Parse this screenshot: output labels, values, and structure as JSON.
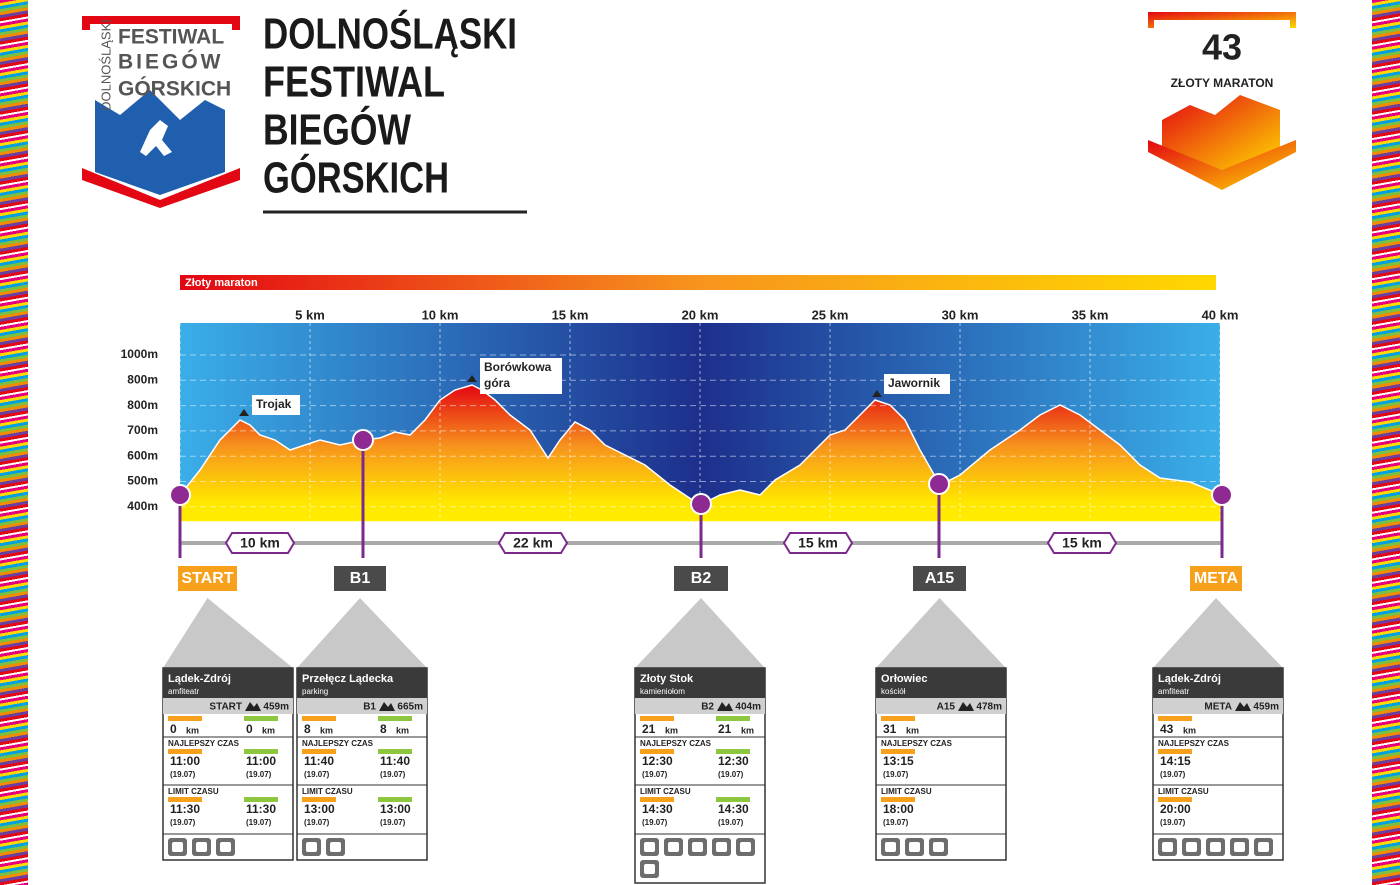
{
  "logo": {
    "vertical": "DOLNOŚLĄSKI",
    "lines": [
      "FESTIWAL",
      "BIEGÓW",
      "GÓRSKICH"
    ]
  },
  "header": {
    "title_lines": [
      "DOLNOŚLĄSKI",
      "FESTIWAL",
      "BIEGÓW",
      "GÓRSKICH"
    ]
  },
  "badge": {
    "number": "43",
    "name": "ZŁOTY MARATON"
  },
  "profile": {
    "route_name": "Złoty maraton",
    "km_labels": [
      "5 km",
      "10 km",
      "15 km",
      "20 km",
      "25 km",
      "30 km",
      "35 km",
      "40 km"
    ],
    "altitude_labels": [
      "1000m",
      "800m",
      "800m",
      "700m",
      "600m",
      "500m",
      "400m"
    ],
    "peaks": [
      {
        "lines": [
          "Trojak"
        ]
      },
      {
        "lines": [
          "Borówkowa",
          "góra"
        ]
      },
      {
        "lines": [
          "Jawornik"
        ]
      }
    ],
    "segments": [
      "10 km",
      "22 km",
      "15 km",
      "15 km"
    ]
  },
  "labels": {
    "best": "NAJLEPSZY CZAS",
    "limit": "LIMIT CZASU",
    "km": "km"
  },
  "cards": [
    {
      "name": "Lądek-Zdrój",
      "sub": "amfiteatr",
      "code": "START",
      "altitude": "459m",
      "distance": [
        0,
        0
      ],
      "best": [
        {
          "time": "11:00",
          "date": "(19.07)"
        },
        {
          "time": "11:00",
          "date": "(19.07)"
        }
      ],
      "limit": [
        {
          "time": "11:30",
          "date": "(19.07)"
        },
        {
          "time": "11:30",
          "date": "(19.07)"
        }
      ]
    },
    {
      "name": "Przełęcz Lądecka",
      "sub": "parking",
      "code": "B1",
      "altitude": "665m",
      "distance": [
        8,
        8
      ],
      "best": [
        {
          "time": "11:40",
          "date": "(19.07)"
        },
        {
          "time": "11:40",
          "date": "(19.07)"
        }
      ],
      "limit": [
        {
          "time": "13:00",
          "date": "(19.07)"
        },
        {
          "time": "13:00",
          "date": "(19.07)"
        }
      ]
    },
    {
      "name": "Złoty Stok",
      "sub": "kamieniołom",
      "code": "B2",
      "altitude": "404m",
      "distance": [
        21,
        21
      ],
      "best": [
        {
          "time": "12:30",
          "date": "(19.07)"
        },
        {
          "time": "12:30",
          "date": "(19.07)"
        }
      ],
      "limit": [
        {
          "time": "14:30",
          "date": "(19.07)"
        },
        {
          "time": "14:30",
          "date": "(19.07)"
        }
      ]
    },
    {
      "name": "Orłowiec",
      "sub": "kościół",
      "code": "A15",
      "altitude": "478m",
      "distance": [
        31
      ],
      "best": [
        {
          "time": "13:15",
          "date": "(19.07)"
        }
      ],
      "limit": [
        {
          "time": "18:00",
          "date": "(19.07)"
        }
      ]
    },
    {
      "name": "Lądek-Zdrój",
      "sub": "amfiteatr",
      "code": "META",
      "altitude": "459m",
      "distance": [
        43
      ],
      "best": [
        {
          "time": "14:15",
          "date": "(19.07)"
        }
      ],
      "limit": [
        {
          "time": "20:00",
          "date": "(19.07)"
        }
      ]
    }
  ]
}
